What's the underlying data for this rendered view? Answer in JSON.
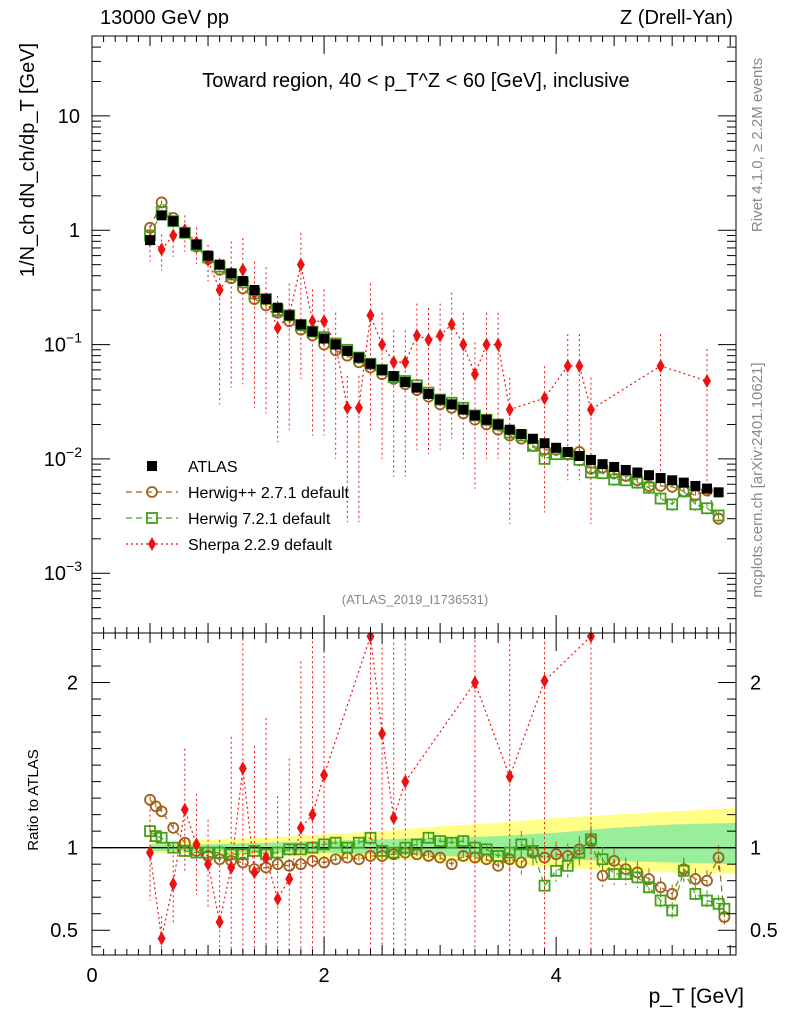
{
  "header": {
    "left": "13000 GeV pp",
    "right": "Z (Drell-Yan)"
  },
  "side_labels": {
    "rivet": "Rivet 4.1.0, ≥ 2.2M events",
    "mcplots": "mcplots.cern.ch [arXiv:2401.10621]"
  },
  "colors": {
    "atlas": "#000000",
    "herwigpp": "#a0601a",
    "herwig7": "#44a01a",
    "sherpa": "#ee1111",
    "band_inner": "#99ee99",
    "band_outer": "#ffff88"
  },
  "chart_data": [
    {
      "type": "scatter",
      "panel": "main",
      "title": "Toward region, 40 < p_T^Z < 60 [GeV], inclusive",
      "watermark": "(ATLAS_2019_I1736531)",
      "ylabel": "1/N_ch dN_ch/dp_T [GeV]",
      "yscale": "log",
      "xlim": [
        0,
        5.55
      ],
      "ylim": [
        0.0003,
        50
      ],
      "yticks": [
        {
          "value": 0.001,
          "base": "10",
          "exp": "−3"
        },
        {
          "value": 0.01,
          "base": "10",
          "exp": "−2"
        },
        {
          "value": 0.1,
          "base": "10",
          "exp": "−1"
        },
        {
          "value": 1,
          "base": "1",
          "exp": ""
        },
        {
          "value": 10,
          "base": "10",
          "exp": ""
        }
      ],
      "legend": [
        {
          "key": "atlas",
          "label": "ATLAS"
        },
        {
          "key": "herwigpp",
          "label": "Herwig++ 2.7.1 default"
        },
        {
          "key": "herwig7",
          "label": "Herwig 7.2.1 default"
        },
        {
          "key": "sherpa",
          "label": "Sherpa 2.2.9 default"
        }
      ],
      "series": {
        "atlas": {
          "x": [
            0.5,
            0.6,
            0.7,
            0.8,
            0.9,
            1.0,
            1.1,
            1.2,
            1.3,
            1.4,
            1.5,
            1.6,
            1.7,
            1.8,
            1.9,
            2.0,
            2.1,
            2.2,
            2.3,
            2.4,
            2.5,
            2.6,
            2.7,
            2.8,
            2.9,
            3.0,
            3.1,
            3.2,
            3.3,
            3.4,
            3.5,
            3.6,
            3.7,
            3.8,
            3.9,
            4.0,
            4.1,
            4.2,
            4.3,
            4.4,
            4.5,
            4.6,
            4.7,
            4.8,
            4.9,
            5.0,
            5.1,
            5.2,
            5.3,
            5.4
          ],
          "y": [
            0.82,
            1.35,
            1.2,
            0.95,
            0.75,
            0.6,
            0.5,
            0.42,
            0.36,
            0.3,
            0.25,
            0.21,
            0.18,
            0.15,
            0.13,
            0.113,
            0.1,
            0.088,
            0.077,
            0.068,
            0.06,
            0.053,
            0.047,
            0.042,
            0.037,
            0.033,
            0.03,
            0.027,
            0.024,
            0.022,
            0.02,
            0.018,
            0.0165,
            0.015,
            0.0137,
            0.0125,
            0.0115,
            0.0106,
            0.0098,
            0.009,
            0.0085,
            0.008,
            0.0076,
            0.0072,
            0.0068,
            0.0065,
            0.0062,
            0.0058,
            0.0055,
            0.0051
          ]
        },
        "herwigpp": {
          "x": [
            0.5,
            0.6,
            0.7,
            0.8,
            0.9,
            1.0,
            1.1,
            1.2,
            1.3,
            1.4,
            1.5,
            1.6,
            1.7,
            1.8,
            1.9,
            2.0,
            2.1,
            2.2,
            2.3,
            2.4,
            2.5,
            2.6,
            2.7,
            2.8,
            2.9,
            3.0,
            3.1,
            3.2,
            3.3,
            3.4,
            3.5,
            3.6,
            3.7,
            3.8,
            3.9,
            4.0,
            4.1,
            4.2,
            4.3,
            4.4,
            4.5,
            4.6,
            4.7,
            4.8,
            4.9,
            5.0,
            5.1,
            5.2,
            5.3,
            5.4
          ],
          "y": [
            1.05,
            1.75,
            1.28,
            0.96,
            0.72,
            0.56,
            0.45,
            0.38,
            0.31,
            0.25,
            0.22,
            0.19,
            0.16,
            0.135,
            0.12,
            0.1,
            0.089,
            0.08,
            0.07,
            0.063,
            0.055,
            0.05,
            0.045,
            0.04,
            0.035,
            0.03,
            0.028,
            0.025,
            0.022,
            0.02,
            0.018,
            0.016,
            0.015,
            0.013,
            0.012,
            0.012,
            0.011,
            0.0115,
            0.0082,
            0.0084,
            0.0075,
            0.0071,
            0.0065,
            0.0058,
            0.0058,
            0.0057,
            0.0052,
            0.0048,
            0.0053,
            0.003
          ]
        },
        "herwig7": {
          "x": [
            0.5,
            0.6,
            0.7,
            0.8,
            0.9,
            1.0,
            1.1,
            1.2,
            1.3,
            1.4,
            1.5,
            1.6,
            1.7,
            1.8,
            1.9,
            2.0,
            2.1,
            2.2,
            2.3,
            2.4,
            2.5,
            2.6,
            2.7,
            2.8,
            2.9,
            3.0,
            3.1,
            3.2,
            3.3,
            3.4,
            3.5,
            3.6,
            3.7,
            3.8,
            3.9,
            4.0,
            4.1,
            4.2,
            4.3,
            4.4,
            4.5,
            4.6,
            4.7,
            4.8,
            4.9,
            5.0,
            5.1,
            5.2,
            5.3,
            5.4
          ],
          "y": [
            0.9,
            1.45,
            1.2,
            0.95,
            0.74,
            0.58,
            0.48,
            0.41,
            0.35,
            0.28,
            0.25,
            0.2,
            0.18,
            0.148,
            0.13,
            0.116,
            0.102,
            0.09,
            0.077,
            0.068,
            0.06,
            0.052,
            0.048,
            0.044,
            0.038,
            0.033,
            0.031,
            0.028,
            0.024,
            0.022,
            0.02,
            0.017,
            0.016,
            0.013,
            0.01,
            0.011,
            0.011,
            0.0098,
            0.0076,
            0.0075,
            0.0066,
            0.0065,
            0.0062,
            0.0056,
            0.0045,
            0.004,
            0.0052,
            0.004,
            0.0037,
            0.0032
          ]
        },
        "sherpa": {
          "x": [
            0.5,
            0.6,
            0.7,
            0.8,
            0.9,
            1.0,
            1.1,
            1.2,
            1.3,
            1.4,
            1.5,
            1.6,
            1.7,
            1.8,
            1.9,
            2.0,
            2.1,
            2.2,
            2.3,
            2.4,
            2.5,
            2.6,
            2.7,
            2.8,
            2.9,
            3.0,
            3.1,
            3.2,
            3.3,
            3.4,
            3.5,
            3.6,
            3.9,
            4.1,
            4.2,
            4.3,
            4.9,
            5.3
          ],
          "y": [
            0.82,
            0.68,
            0.9,
            1.0,
            0.78,
            0.55,
            0.3,
            0.42,
            0.45,
            0.28,
            0.25,
            0.14,
            0.18,
            0.5,
            0.16,
            0.16,
            0.1,
            0.028,
            0.028,
            0.18,
            0.1,
            0.07,
            0.07,
            0.12,
            0.11,
            0.12,
            0.15,
            0.1,
            0.055,
            0.1,
            0.1,
            0.027,
            0.034,
            0.065,
            0.065,
            0.027,
            0.065,
            0.048
          ]
        }
      }
    },
    {
      "type": "scatter",
      "panel": "ratio",
      "ylabel": "Ratio to ATLAS",
      "xlabel": "p_T [GeV]",
      "xlim": [
        0,
        5.55
      ],
      "ylim": [
        0.35,
        2.3
      ],
      "xticks": [
        0,
        2,
        4
      ],
      "yticks": [
        0.5,
        1,
        2
      ],
      "band": {
        "x": [
          0.5,
          1.0,
          1.5,
          2.0,
          2.5,
          3.0,
          3.5,
          4.0,
          4.5,
          5.0,
          5.55
        ],
        "inner_lo": [
          0.98,
          0.98,
          0.97,
          0.97,
          0.96,
          0.95,
          0.94,
          0.93,
          0.92,
          0.91,
          0.9
        ],
        "inner_hi": [
          1.02,
          1.02,
          1.03,
          1.04,
          1.05,
          1.06,
          1.07,
          1.09,
          1.12,
          1.14,
          1.15
        ],
        "outer_lo": [
          0.97,
          0.96,
          0.95,
          0.94,
          0.93,
          0.92,
          0.9,
          0.88,
          0.86,
          0.85,
          0.84
        ],
        "outer_hi": [
          1.03,
          1.05,
          1.06,
          1.08,
          1.1,
          1.13,
          1.15,
          1.18,
          1.2,
          1.22,
          1.24
        ]
      },
      "series": {
        "herwigpp": {
          "x": [
            0.5,
            0.55,
            0.6,
            0.7,
            0.8,
            0.9,
            1.0,
            1.1,
            1.2,
            1.3,
            1.4,
            1.5,
            1.6,
            1.7,
            1.8,
            1.9,
            2.0,
            2.1,
            2.2,
            2.3,
            2.4,
            2.5,
            2.6,
            2.7,
            2.8,
            2.9,
            3.0,
            3.1,
            3.2,
            3.3,
            3.4,
            3.5,
            3.6,
            3.7,
            3.8,
            3.9,
            4.0,
            4.1,
            4.2,
            4.3,
            4.4,
            4.5,
            4.6,
            4.7,
            4.8,
            4.9,
            5.0,
            5.1,
            5.2,
            5.3,
            5.4,
            5.45
          ],
          "y": [
            1.29,
            1.25,
            1.22,
            1.12,
            1.03,
            0.98,
            0.95,
            0.93,
            0.92,
            0.91,
            0.87,
            0.88,
            0.9,
            0.89,
            0.9,
            0.92,
            0.91,
            0.93,
            0.94,
            0.93,
            0.95,
            0.95,
            0.96,
            0.97,
            0.96,
            0.95,
            0.94,
            0.9,
            0.95,
            0.94,
            0.93,
            0.89,
            0.93,
            0.91,
            0.97,
            0.94,
            0.96,
            0.95,
            0.99,
            1.04,
            0.83,
            0.92,
            0.87,
            0.85,
            0.81,
            0.76,
            0.72,
            0.87,
            0.81,
            0.8,
            0.94,
            0.58
          ]
        },
        "herwig7": {
          "x": [
            0.5,
            0.55,
            0.6,
            0.7,
            0.8,
            0.9,
            1.0,
            1.1,
            1.2,
            1.3,
            1.4,
            1.5,
            1.6,
            1.7,
            1.8,
            1.9,
            2.0,
            2.1,
            2.2,
            2.3,
            2.4,
            2.5,
            2.6,
            2.7,
            2.8,
            2.9,
            3.0,
            3.1,
            3.2,
            3.3,
            3.4,
            3.5,
            3.6,
            3.7,
            3.8,
            3.9,
            4.0,
            4.1,
            4.2,
            4.3,
            4.4,
            4.5,
            4.6,
            4.7,
            4.8,
            4.9,
            5.0,
            5.1,
            5.2,
            5.3,
            5.4,
            5.45
          ],
          "y": [
            1.1,
            1.07,
            1.06,
            1.0,
            0.98,
            0.97,
            0.97,
            0.97,
            0.96,
            0.96,
            0.98,
            0.96,
            0.97,
            0.99,
            0.99,
            1.0,
            1.02,
            1.03,
            1.0,
            1.03,
            1.06,
            0.98,
            0.97,
            1.0,
            1.02,
            1.06,
            1.04,
            1.03,
            1.04,
            1.0,
            0.99,
            0.95,
            0.97,
            1.02,
            0.98,
            0.77,
            0.86,
            0.89,
            0.97,
            1.05,
            0.93,
            0.84,
            0.84,
            0.82,
            0.76,
            0.68,
            0.62,
            0.86,
            0.72,
            0.68,
            0.66,
            0.63
          ]
        },
        "sherpa": {
          "x": [
            0.5,
            0.6,
            0.7,
            0.8,
            0.9,
            1.0,
            1.1,
            1.2,
            1.3,
            1.4,
            1.5,
            1.6,
            1.7,
            1.8,
            1.9,
            2.0,
            2.4,
            2.5,
            2.6,
            2.7,
            3.3,
            3.6,
            3.9,
            4.3
          ],
          "y": [
            0.97,
            0.45,
            0.78,
            1.23,
            1.02,
            0.9,
            0.55,
            0.88,
            1.48,
            0.85,
            0.94,
            0.69,
            0.81,
            1.12,
            1.2,
            1.44,
            2.28,
            1.69,
            1.18,
            1.4,
            2.0,
            1.43,
            2.01,
            2.28
          ]
        }
      }
    }
  ]
}
